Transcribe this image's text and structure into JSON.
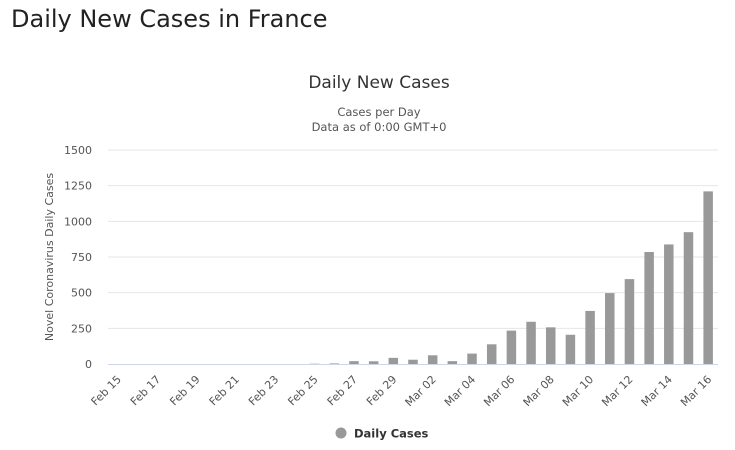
{
  "page": {
    "heading": "Daily New Cases in France"
  },
  "colors": {
    "bar": "#999999",
    "grid": "#e6e6e6",
    "axis": "#ccd6eb"
  },
  "chart_data": {
    "type": "bar",
    "title": "Daily New Cases",
    "subtitle": "Cases per Day",
    "subtitle2": "Data as of 0:00 GMT+0",
    "xlabel": "",
    "ylabel": "Novel Coronavirus Daily Cases",
    "ylim": [
      0,
      1500
    ],
    "yticks": [
      0,
      250,
      500,
      750,
      1000,
      1250,
      1500
    ],
    "grid": true,
    "legend": {
      "position": "bottom-center",
      "label": "Daily Cases"
    },
    "categories": [
      "Feb 15",
      "Feb 16",
      "Feb 17",
      "Feb 18",
      "Feb 19",
      "Feb 20",
      "Feb 21",
      "Feb 22",
      "Feb 23",
      "Feb 24",
      "Feb 25",
      "Feb 26",
      "Feb 27",
      "Feb 28",
      "Feb 29",
      "Mar 01",
      "Mar 02",
      "Mar 03",
      "Mar 04",
      "Mar 05",
      "Mar 06",
      "Mar 07",
      "Mar 08",
      "Mar 09",
      "Mar 10",
      "Mar 11",
      "Mar 12",
      "Mar 13",
      "Mar 14",
      "Mar 15",
      "Mar 16"
    ],
    "xtick_labels": [
      "Feb 15",
      "Feb 17",
      "Feb 19",
      "Feb 21",
      "Feb 23",
      "Feb 25",
      "Feb 27",
      "Feb 29",
      "Mar 02",
      "Mar 04",
      "Mar 06",
      "Mar 08",
      "Mar 10",
      "Mar 12",
      "Mar 14",
      "Mar 16"
    ],
    "series": [
      {
        "name": "Daily Cases",
        "values": [
          0,
          0,
          0,
          0,
          0,
          0,
          0,
          0,
          0,
          0,
          2,
          4,
          20,
          19,
          43,
          30,
          61,
          20,
          73,
          138,
          234,
          296,
          257,
          205,
          372,
          497,
          595,
          785,
          838,
          924,
          1210
        ]
      }
    ]
  }
}
